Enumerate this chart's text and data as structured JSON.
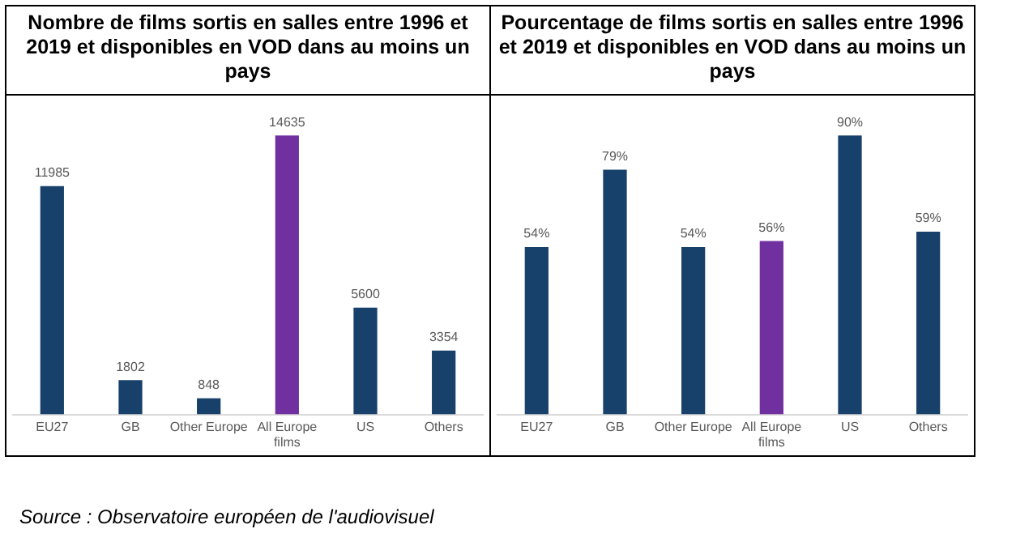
{
  "chart_data": [
    {
      "type": "bar",
      "title": "Nombre de films sortis en salles entre 1996 et 2019 et disponibles en VOD dans au moins un pays",
      "categories": [
        "EU27",
        "GB",
        "Other Europe",
        "All Europe films",
        "US",
        "Others"
      ],
      "values": [
        11985,
        1802,
        848,
        14635,
        5600,
        3354
      ],
      "colors": [
        "#17406a",
        "#17406a",
        "#17406a",
        "#7030a0",
        "#17406a",
        "#17406a"
      ],
      "data_labels": true,
      "grid": false,
      "legend": false,
      "tick_labels": "x",
      "annotations": [
        "Source : Observatoire européen de l'audiovisuel"
      ]
    },
    {
      "type": "bar",
      "title": "Pourcentage de films sortis en salles entre 1996 et 2019 et disponibles en VOD dans au moins un pays",
      "categories": [
        "EU27",
        "GB",
        "Other Europe",
        "All Europe films",
        "US",
        "Others"
      ],
      "values": [
        54,
        79,
        54,
        56,
        90,
        59
      ],
      "value_labels": [
        "54%",
        "79%",
        "54%",
        "56%",
        "90%",
        "59%"
      ],
      "colors": [
        "#17406a",
        "#17406a",
        "#17406a",
        "#7030a0",
        "#17406a",
        "#17406a"
      ],
      "grid": false,
      "legend": false,
      "tick_labels": "x"
    }
  ]
}
